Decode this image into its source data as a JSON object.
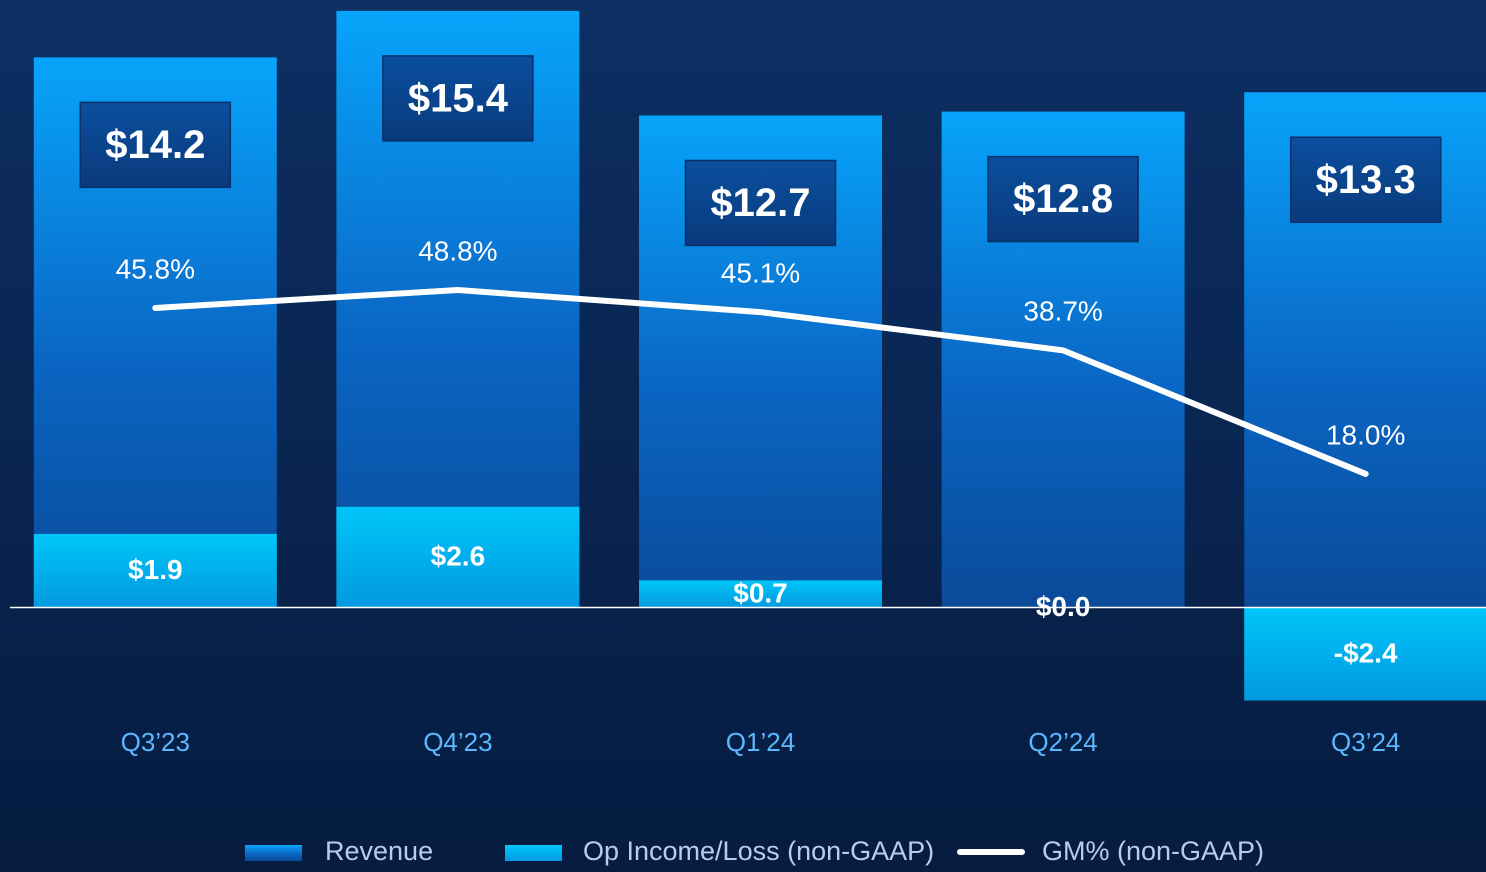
{
  "chart_data": {
    "type": "bar",
    "categories": [
      "Q3’23",
      "Q4’23",
      "Q1’24",
      "Q2’24",
      "Q3’24"
    ],
    "series": [
      {
        "name": "Revenue",
        "color": "#0a6fd0",
        "values": [
          14.2,
          15.4,
          12.7,
          12.8,
          13.3
        ],
        "value_labels": [
          "$14.2",
          "$15.4",
          "$12.7",
          "$12.8",
          "$13.3"
        ]
      },
      {
        "name": "Op Income/Loss (non-GAAP)",
        "color": "#00b8f0",
        "values": [
          1.9,
          2.6,
          0.7,
          0.0,
          -2.4
        ],
        "value_labels": [
          "$1.9",
          "$2.6",
          "$0.7",
          "$0.0",
          "-$2.4"
        ]
      },
      {
        "name": "GM% (non-GAAP)",
        "type": "line",
        "axis": "y2",
        "color": "#ffffff",
        "values": [
          45.8,
          48.8,
          45.1,
          38.7,
          18.0
        ],
        "value_labels": [
          "45.8%",
          "48.8%",
          "45.1%",
          "38.7%",
          "18.0%"
        ]
      }
    ],
    "ylim": [
      -6,
      15.5
    ],
    "y2lim": [
      -43.3,
      96.2
    ]
  }
}
